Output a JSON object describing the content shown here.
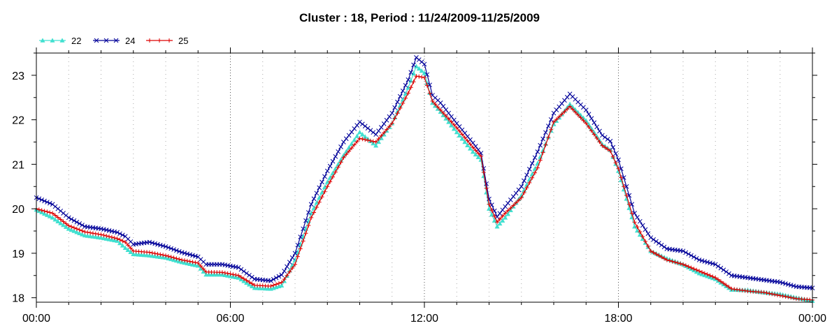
{
  "chart_data": {
    "type": "line",
    "title": "Cluster : 18, Period : 11/24/2009-11/25/2009",
    "xlabel": "",
    "ylabel": "",
    "x_ticks": [
      "00:00",
      "06:00",
      "12:00",
      "18:00",
      "00:00"
    ],
    "x_tick_hours": [
      0,
      6,
      12,
      18,
      24
    ],
    "y_ticks": [
      18,
      19,
      20,
      21,
      22,
      23
    ],
    "xlim": [
      0,
      24
    ],
    "ylim": [
      17.9,
      23.5
    ],
    "grid": "dotted",
    "legend_position": "top-left",
    "x_unit": "hours since 00:00 (11/24/2009)",
    "series": [
      {
        "name": "22",
        "color": "#40e0d0",
        "marker": "triangle",
        "points": [
          [
            0,
            19.98
          ],
          [
            0.5,
            19.8
          ],
          [
            1,
            19.55
          ],
          [
            1.5,
            19.4
          ],
          [
            2,
            19.35
          ],
          [
            2.5,
            19.28
          ],
          [
            2.75,
            19.12
          ],
          [
            3,
            18.98
          ],
          [
            3.5,
            18.95
          ],
          [
            4,
            18.9
          ],
          [
            4.5,
            18.8
          ],
          [
            5,
            18.72
          ],
          [
            5.25,
            18.52
          ],
          [
            5.75,
            18.52
          ],
          [
            6.25,
            18.45
          ],
          [
            6.75,
            18.22
          ],
          [
            7.25,
            18.2
          ],
          [
            7.6,
            18.28
          ],
          [
            8,
            18.85
          ],
          [
            8.5,
            19.9
          ],
          [
            9,
            20.6
          ],
          [
            9.5,
            21.2
          ],
          [
            10,
            21.72
          ],
          [
            10.5,
            21.42
          ],
          [
            11,
            21.92
          ],
          [
            11.5,
            22.72
          ],
          [
            11.75,
            23.2
          ],
          [
            12,
            23.05
          ],
          [
            12.25,
            22.38
          ],
          [
            12.5,
            22.18
          ],
          [
            13,
            21.72
          ],
          [
            13.5,
            21.28
          ],
          [
            13.75,
            21.1
          ],
          [
            14,
            20.0
          ],
          [
            14.25,
            19.6
          ],
          [
            14.5,
            19.8
          ],
          [
            15,
            20.3
          ],
          [
            15.5,
            21.02
          ],
          [
            16,
            21.9
          ],
          [
            16.5,
            22.35
          ],
          [
            17,
            21.98
          ],
          [
            17.5,
            21.45
          ],
          [
            17.75,
            21.32
          ],
          [
            18,
            20.85
          ],
          [
            18.5,
            19.6
          ],
          [
            19,
            19.05
          ],
          [
            19.5,
            18.88
          ],
          [
            20,
            18.75
          ],
          [
            20.5,
            18.55
          ],
          [
            21,
            18.42
          ],
          [
            21.5,
            18.18
          ],
          [
            22,
            18.17
          ],
          [
            22.5,
            18.12
          ],
          [
            23,
            18.08
          ],
          [
            23.5,
            18.0
          ],
          [
            24,
            17.93
          ]
        ]
      },
      {
        "name": "24",
        "color": "#000099",
        "marker": "cross",
        "points": [
          [
            0,
            20.25
          ],
          [
            0.5,
            20.1
          ],
          [
            1,
            19.8
          ],
          [
            1.5,
            19.6
          ],
          [
            2,
            19.55
          ],
          [
            2.5,
            19.47
          ],
          [
            2.75,
            19.38
          ],
          [
            3,
            19.2
          ],
          [
            3.5,
            19.25
          ],
          [
            4,
            19.15
          ],
          [
            4.5,
            19.02
          ],
          [
            5,
            18.92
          ],
          [
            5.25,
            18.75
          ],
          [
            5.75,
            18.75
          ],
          [
            6.25,
            18.68
          ],
          [
            6.75,
            18.42
          ],
          [
            7.25,
            18.38
          ],
          [
            7.6,
            18.52
          ],
          [
            8,
            19.0
          ],
          [
            8.5,
            20.1
          ],
          [
            9,
            20.85
          ],
          [
            9.5,
            21.5
          ],
          [
            10,
            21.95
          ],
          [
            10.5,
            21.67
          ],
          [
            11,
            22.15
          ],
          [
            11.5,
            22.9
          ],
          [
            11.75,
            23.4
          ],
          [
            12,
            23.25
          ],
          [
            12.25,
            22.55
          ],
          [
            12.5,
            22.38
          ],
          [
            13,
            21.92
          ],
          [
            13.5,
            21.48
          ],
          [
            13.75,
            21.25
          ],
          [
            14,
            20.22
          ],
          [
            14.25,
            19.82
          ],
          [
            14.5,
            20.05
          ],
          [
            15,
            20.5
          ],
          [
            15.5,
            21.28
          ],
          [
            16,
            22.15
          ],
          [
            16.5,
            22.58
          ],
          [
            17,
            22.22
          ],
          [
            17.5,
            21.65
          ],
          [
            17.75,
            21.52
          ],
          [
            18,
            21.1
          ],
          [
            18.5,
            19.9
          ],
          [
            19,
            19.35
          ],
          [
            19.5,
            19.1
          ],
          [
            20,
            19.05
          ],
          [
            20.5,
            18.85
          ],
          [
            21,
            18.75
          ],
          [
            21.5,
            18.5
          ],
          [
            22,
            18.45
          ],
          [
            22.5,
            18.4
          ],
          [
            23,
            18.35
          ],
          [
            23.5,
            18.25
          ],
          [
            24,
            18.22
          ]
        ]
      },
      {
        "name": "25",
        "color": "#dd0000",
        "marker": "plus",
        "points": [
          [
            0,
            20.0
          ],
          [
            0.5,
            19.9
          ],
          [
            1,
            19.62
          ],
          [
            1.5,
            19.48
          ],
          [
            2,
            19.42
          ],
          [
            2.5,
            19.33
          ],
          [
            2.75,
            19.25
          ],
          [
            3,
            19.05
          ],
          [
            3.5,
            19.02
          ],
          [
            4,
            18.95
          ],
          [
            4.5,
            18.85
          ],
          [
            5,
            18.78
          ],
          [
            5.25,
            18.58
          ],
          [
            5.75,
            18.57
          ],
          [
            6.25,
            18.5
          ],
          [
            6.75,
            18.28
          ],
          [
            7.25,
            18.26
          ],
          [
            7.6,
            18.35
          ],
          [
            8,
            18.75
          ],
          [
            8.5,
            19.8
          ],
          [
            9,
            20.5
          ],
          [
            9.5,
            21.15
          ],
          [
            10,
            21.58
          ],
          [
            10.5,
            21.5
          ],
          [
            11,
            21.92
          ],
          [
            11.5,
            22.6
          ],
          [
            11.75,
            22.98
          ],
          [
            12,
            22.95
          ],
          [
            12.25,
            22.42
          ],
          [
            12.5,
            22.22
          ],
          [
            13,
            21.82
          ],
          [
            13.5,
            21.38
          ],
          [
            13.75,
            21.18
          ],
          [
            14,
            20.1
          ],
          [
            14.25,
            19.7
          ],
          [
            14.5,
            19.9
          ],
          [
            15,
            20.25
          ],
          [
            15.5,
            20.92
          ],
          [
            16,
            21.95
          ],
          [
            16.5,
            22.3
          ],
          [
            17,
            21.92
          ],
          [
            17.5,
            21.42
          ],
          [
            17.75,
            21.3
          ],
          [
            18,
            20.9
          ],
          [
            18.5,
            19.7
          ],
          [
            19,
            19.05
          ],
          [
            19.5,
            18.85
          ],
          [
            20,
            18.75
          ],
          [
            20.5,
            18.6
          ],
          [
            21,
            18.45
          ],
          [
            21.5,
            18.2
          ],
          [
            22,
            18.15
          ],
          [
            22.5,
            18.12
          ],
          [
            23,
            18.05
          ],
          [
            23.5,
            17.98
          ],
          [
            24,
            17.95
          ]
        ]
      }
    ]
  }
}
